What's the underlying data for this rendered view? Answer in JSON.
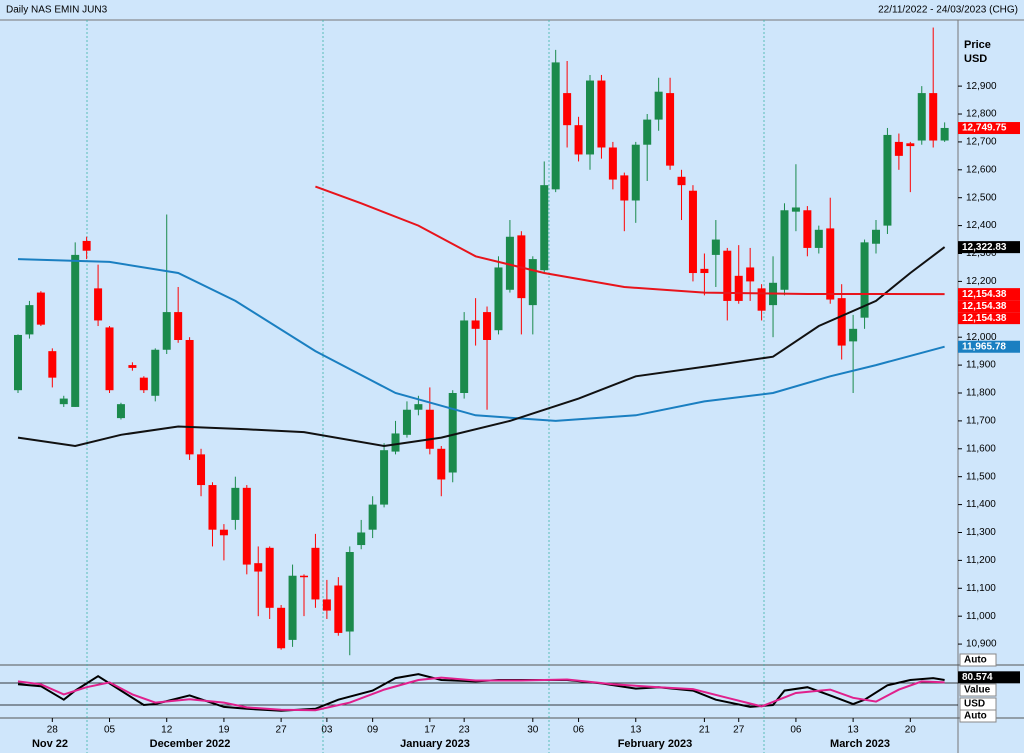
{
  "chart_data": [
    {
      "type": "candlestick",
      "title": "Daily NAS EMIN JUN3",
      "subtitle": "22/11/2022 - 24/03/2023 (CHG)",
      "y_axis_label": [
        "Price",
        "USD"
      ],
      "categories": [
        null,
        null,
        null,
        "28",
        null,
        null,
        null,
        null,
        "05",
        null,
        null,
        null,
        null,
        "12",
        null,
        null,
        null,
        null,
        "19",
        null,
        null,
        null,
        null,
        "27",
        null,
        null,
        null,
        "03",
        null,
        null,
        null,
        "09",
        null,
        null,
        null,
        null,
        "17",
        null,
        null,
        "23",
        null,
        null,
        null,
        null,
        null,
        "30",
        null,
        null,
        null,
        "06",
        null,
        null,
        null,
        null,
        "13",
        null,
        null,
        null,
        null,
        null,
        "21",
        null,
        null,
        "27",
        null,
        null,
        null,
        null,
        "06",
        null,
        null,
        null,
        null,
        "13",
        null,
        null,
        null,
        null,
        "20",
        null,
        null,
        null
      ],
      "x_groups": [
        "Nov 22",
        "December 2022",
        "January 2023",
        "February 2023",
        "March 2023"
      ],
      "open": [
        11810,
        12010,
        12160,
        11950,
        11760,
        11750,
        12345,
        12175,
        12035,
        11710,
        11900,
        11855,
        11790,
        11955,
        12090,
        11990,
        11580,
        11470,
        11310,
        11345,
        11460,
        11190,
        11245,
        11030,
        10915,
        11145,
        11245,
        11060,
        11110,
        10945,
        11255,
        11310,
        11400,
        11590,
        11650,
        11740,
        11740,
        11600,
        11515,
        11800,
        12060,
        12090,
        12025,
        12170,
        12365,
        12115,
        12240,
        12530,
        12875,
        12760,
        12655,
        12920,
        12680,
        12580,
        12490,
        12690,
        12780,
        12875,
        12575,
        12525,
        12245,
        12295,
        12310,
        12220,
        12250,
        12175,
        12115,
        12170,
        12450,
        12455,
        12320,
        12390,
        12140,
        11985,
        12070,
        12335,
        12400,
        12700,
        12695,
        12705,
        12875,
        12705
      ],
      "high": [
        12010,
        12130,
        12165,
        11960,
        11790,
        12340,
        12360,
        12260,
        12040,
        11765,
        11910,
        11860,
        11960,
        12440,
        12180,
        12000,
        11600,
        11480,
        11330,
        11500,
        11470,
        11250,
        11250,
        11040,
        11185,
        11150,
        11295,
        11130,
        11140,
        11250,
        11345,
        11430,
        11620,
        11700,
        11770,
        11790,
        11820,
        11610,
        11810,
        12090,
        12140,
        12110,
        12290,
        12420,
        12380,
        12290,
        12630,
        13030,
        12990,
        12790,
        12940,
        12940,
        12700,
        12590,
        12700,
        12800,
        12930,
        12930,
        12600,
        12545,
        12300,
        12420,
        12320,
        12330,
        12320,
        12190,
        12290,
        12480,
        12620,
        12470,
        12400,
        12500,
        12190,
        12080,
        12350,
        12420,
        12750,
        12730,
        12700,
        12900,
        13110,
        12770
      ],
      "low": [
        11800,
        11995,
        12040,
        11820,
        11750,
        11750,
        12280,
        12040,
        11800,
        11705,
        11880,
        11800,
        11770,
        11940,
        11980,
        11560,
        11430,
        11250,
        11200,
        11310,
        11150,
        11000,
        10990,
        10880,
        10890,
        11000,
        11030,
        10990,
        10930,
        10860,
        11240,
        11280,
        11390,
        11580,
        11640,
        11720,
        11580,
        11430,
        11480,
        11780,
        11970,
        11740,
        12010,
        12160,
        12010,
        12010,
        12230,
        12520,
        12680,
        12630,
        12600,
        12640,
        12530,
        12380,
        12410,
        12560,
        12740,
        12600,
        12420,
        12200,
        12150,
        12180,
        12060,
        12120,
        12130,
        12060,
        12000,
        12150,
        12380,
        12290,
        12300,
        12120,
        11920,
        11800,
        12030,
        12300,
        12370,
        12600,
        12520,
        12690,
        12680,
        12700
      ],
      "close": [
        12008,
        12115,
        12045,
        11855,
        11780,
        12295,
        12310,
        12060,
        11810,
        11760,
        11890,
        11810,
        11955,
        12090,
        11990,
        11580,
        11470,
        11310,
        11290,
        11460,
        11185,
        11160,
        11030,
        10885,
        11145,
        11140,
        11060,
        11020,
        10940,
        11230,
        11300,
        11400,
        11595,
        11655,
        11740,
        11760,
        11600,
        11490,
        11800,
        12060,
        12030,
        11990,
        12250,
        12360,
        12140,
        12280,
        12545,
        12985,
        12760,
        12655,
        12920,
        12680,
        12565,
        12490,
        12690,
        12780,
        12880,
        12615,
        12545,
        12230,
        12230,
        12350,
        12130,
        12130,
        12200,
        12095,
        12195,
        12455,
        12465,
        12320,
        12385,
        12135,
        11970,
        12030,
        12340,
        12385,
        12725,
        12650,
        12685,
        12875,
        12705,
        12750
      ],
      "up_color": "#1b8a4c",
      "down_color": "#ff0000",
      "ylim": [
        10825,
        13137
      ],
      "yticks": [
        {
          "value": 10900,
          "label": "10,900"
        },
        {
          "value": 11000,
          "label": "11,000"
        },
        {
          "value": 11100,
          "label": "11,100"
        },
        {
          "value": 11200,
          "label": "11,200"
        },
        {
          "value": 11300,
          "label": "11,300"
        },
        {
          "value": 11400,
          "label": "11,400"
        },
        {
          "value": 11500,
          "label": "11,500"
        },
        {
          "value": 11600,
          "label": "11,600"
        },
        {
          "value": 11700,
          "label": "11,700"
        },
        {
          "value": 11800,
          "label": "11,800"
        },
        {
          "value": 11900,
          "label": "11,900"
        },
        {
          "value": 12000,
          "label": "12,000"
        },
        {
          "value": 12100,
          "label": "12,100"
        },
        {
          "value": 12200,
          "label": "12,200"
        },
        {
          "value": 12300,
          "label": "12,300"
        },
        {
          "value": 12400,
          "label": "12,400"
        },
        {
          "value": 12500,
          "label": "12,500"
        },
        {
          "value": 12600,
          "label": "12,600"
        },
        {
          "value": 12700,
          "label": "12,700"
        },
        {
          "value": 12800,
          "label": "12,800"
        },
        {
          "value": 12900,
          "label": "12,900"
        }
      ],
      "lines": [
        {
          "color": "#1a7fc1",
          "x": [
            0,
            8,
            14,
            19,
            26,
            33,
            40,
            47,
            54,
            60,
            66,
            71,
            75,
            81
          ],
          "values": [
            12280,
            12270,
            12230,
            12130,
            11950,
            11800,
            11720,
            11700,
            11720,
            11770,
            11800,
            11860,
            11900,
            11965.78
          ]
        },
        {
          "color": "#111111",
          "x": [
            0,
            5,
            9,
            14,
            20,
            25,
            32,
            37,
            43,
            49,
            54,
            61,
            66,
            70,
            75,
            78,
            81
          ],
          "values": [
            11640,
            11610,
            11650,
            11680,
            11670,
            11660,
            11610,
            11640,
            11700,
            11780,
            11860,
            11900,
            11930,
            12040,
            12130,
            12230,
            12322.83
          ]
        },
        {
          "color": "#e8141b",
          "x": [
            26,
            30,
            35,
            40,
            46,
            53,
            60,
            69,
            81
          ],
          "values": [
            12540,
            12480,
            12400,
            12290,
            12230,
            12180,
            12160,
            12155,
            12154.38
          ]
        }
      ],
      "price_labels": [
        {
          "value": 12749.75,
          "label": "12,749.75",
          "color": "#ff0000"
        },
        {
          "value": 12322.83,
          "label": "12,322.83",
          "color": "#000000"
        },
        {
          "value": 12154.38,
          "label": "12,154.38",
          "color": "#ff0000"
        },
        {
          "value": 12154.38,
          "label": "12,154.38",
          "color": "#ff0000"
        },
        {
          "value": 12154.38,
          "label": "12,154.38",
          "color": "#ff0000"
        },
        {
          "value": 11965.78,
          "label": "11,965.78",
          "color": "#1a7fc1"
        }
      ]
    },
    {
      "type": "line",
      "ylim": [
        0,
        100
      ],
      "yticks": [
        {
          "value": 80.574,
          "label": "80.574"
        }
      ],
      "side_labels": [
        "Auto",
        "Value",
        "USD",
        "Auto"
      ],
      "lines": [
        {
          "color": "#000000",
          "x": [
            0,
            2,
            4,
            5,
            7,
            9,
            11,
            12,
            15,
            18,
            20,
            23,
            26,
            28,
            31,
            33,
            35,
            37,
            40,
            42,
            46,
            48,
            51,
            54,
            56,
            59,
            61,
            64,
            66,
            67,
            69,
            71,
            73,
            74,
            76,
            78,
            80,
            81
          ],
          "values": [
            66,
            62,
            34,
            53,
            83,
            53,
            23,
            25,
            43,
            19,
            15,
            11,
            15,
            34,
            53,
            79,
            87,
            75,
            72,
            75,
            75,
            75,
            68,
            57,
            60,
            53,
            34,
            19,
            23,
            53,
            60,
            43,
            25,
            34,
            64,
            75,
            79,
            75
          ]
        },
        {
          "color": "#e0208c",
          "x": [
            0,
            2,
            4,
            6,
            8,
            10,
            12,
            15,
            18,
            20,
            23,
            26,
            29,
            32,
            35,
            37,
            40,
            44,
            48,
            52,
            56,
            59,
            62,
            65,
            68,
            71,
            73,
            75,
            77,
            79,
            81
          ],
          "values": [
            72,
            66,
            45,
            60,
            70,
            45,
            28,
            35,
            28,
            18,
            13,
            12,
            28,
            55,
            75,
            80,
            74,
            74,
            76,
            66,
            60,
            56,
            38,
            20,
            48,
            55,
            38,
            30,
            55,
            72,
            70
          ]
        }
      ]
    }
  ]
}
